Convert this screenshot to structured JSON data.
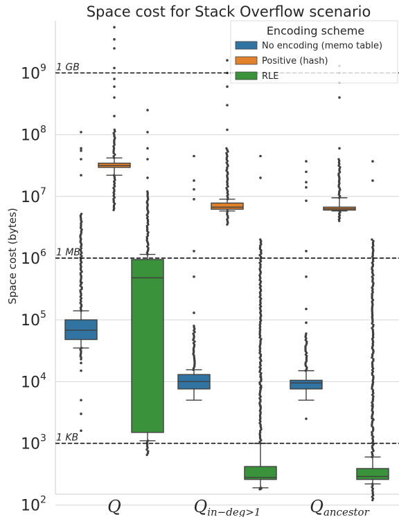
{
  "chart_data": {
    "type": "box",
    "title": "Space cost for Stack Overflow scenario",
    "ylabel": "Space cost (bytes)",
    "xlabel": "",
    "yscale": "log",
    "ylim": [
      150,
      7000000000
    ],
    "grid": "horizontal",
    "yticks": [
      {
        "value": 100,
        "base": "10",
        "exp": "2"
      },
      {
        "value": 1000,
        "base": "10",
        "exp": "3"
      },
      {
        "value": 10000,
        "base": "10",
        "exp": "4"
      },
      {
        "value": 100000,
        "base": "10",
        "exp": "5"
      },
      {
        "value": 1000000,
        "base": "10",
        "exp": "6"
      },
      {
        "value": 10000000,
        "base": "10",
        "exp": "7"
      },
      {
        "value": 100000000,
        "base": "10",
        "exp": "8"
      },
      {
        "value": 1000000000,
        "base": "10",
        "exp": "9"
      }
    ],
    "categories": [
      {
        "main": "Q",
        "sub": ""
      },
      {
        "main": "Q",
        "sub": "in−deg>1"
      },
      {
        "main": "Q",
        "sub": "ancestor"
      }
    ],
    "reference_lines": [
      {
        "label": "1 GB",
        "value": 1000000000
      },
      {
        "label": "1 MB",
        "value": 1000000
      },
      {
        "label": "1 KB",
        "value": 1000
      }
    ],
    "legend": {
      "title": "Encoding scheme",
      "position": "top-right"
    },
    "series": [
      {
        "name": "No encoding (memo table)",
        "color": "#3274a1",
        "boxes": [
          {
            "whislo": 35000,
            "q1": 48000,
            "median": 68000,
            "q3": 100000,
            "whishi": 140000,
            "fliers_dense": [
              [
                23000,
                35000
              ],
              [
                140000,
                5200000
              ]
            ],
            "fliers": [
              400000,
              20000,
              15000,
              5000,
              3000,
              1600,
              22000000,
              40000000,
              55000000,
              60000000,
              110000000
            ]
          },
          {
            "whislo": 5000,
            "q1": 7600,
            "median": 10000,
            "q3": 13000,
            "whishi": 15500,
            "fliers_dense": [
              [
                15500,
                80000
              ]
            ],
            "fliers": [
              130000,
              500000,
              1300000,
              9000000,
              13000000,
              18000000,
              45000000
            ]
          },
          {
            "whislo": 5000,
            "q1": 7600,
            "median": 9500,
            "q3": 10500,
            "whishi": 15000,
            "fliers_dense": [
              [
                15000,
                60000
              ]
            ],
            "fliers": [
              2500,
              90000,
              150000,
              500000,
              1300000,
              8500000,
              14000000,
              17000000,
              25000000,
              37000000
            ]
          }
        ]
      },
      {
        "name": "Positive (hash)",
        "color": "#e1812c",
        "boxes": [
          {
            "whislo": 22000000,
            "q1": 29500000,
            "median": 31500000,
            "q3": 34500000,
            "whishi": 42000000,
            "fliers_dense": [
              [
                6000000,
                22000000
              ],
              [
                42000000,
                120000000
              ]
            ],
            "fliers": [
              200000000,
              400000000,
              600000000,
              800000000,
              1200000000,
              2500000000,
              3500000000,
              5500000000
            ]
          },
          {
            "whislo": 5800000,
            "q1": 6200000,
            "median": 6700000,
            "q3": 7800000,
            "whishi": 9000000,
            "fliers_dense": [
              [
                3500000,
                5800000
              ],
              [
                9000000,
                60000000
              ]
            ],
            "fliers": [
              120000000,
              300000000,
              600000000,
              1000000000,
              1600000000
            ]
          },
          {
            "whislo": 5800000,
            "q1": 6000000,
            "median": 6300000,
            "q3": 6700000,
            "whishi": 9500000,
            "fliers_dense": [
              [
                4000000,
                5800000
              ],
              [
                9500000,
                40000000
              ]
            ],
            "fliers": [
              60000000,
              400000000,
              700000000,
              1000000000,
              1300000000
            ]
          }
        ]
      },
      {
        "name": "RLE",
        "color": "#3a923a",
        "boxes": [
          {
            "whislo": 1100,
            "q1": 1500,
            "median": 480000,
            "q3": 950000,
            "whishi": 1150000,
            "fliers_dense": [
              [
                650,
                1100
              ],
              [
                1150000,
                12000000
              ]
            ],
            "fliers": [
              20000000,
              40000000,
              60000000,
              110000000,
              250000000
            ]
          },
          {
            "whislo": 190,
            "q1": 260,
            "median": 280,
            "q3": 420,
            "whishi": 1000,
            "fliers_dense": [
              [
                180,
                190
              ],
              [
                1000,
                2000000
              ]
            ],
            "fliers": [
              4000,
              8000,
              12000,
              20000000,
              45000000
            ]
          },
          {
            "whislo": 220,
            "q1": 260,
            "median": 290,
            "q3": 390,
            "whishi": 600,
            "fliers_dense": [
              [
                120,
                220
              ],
              [
                600,
                2000000
              ]
            ],
            "fliers": [
              2500,
              4000,
              9000,
              18000000,
              37000000
            ]
          }
        ]
      }
    ]
  }
}
